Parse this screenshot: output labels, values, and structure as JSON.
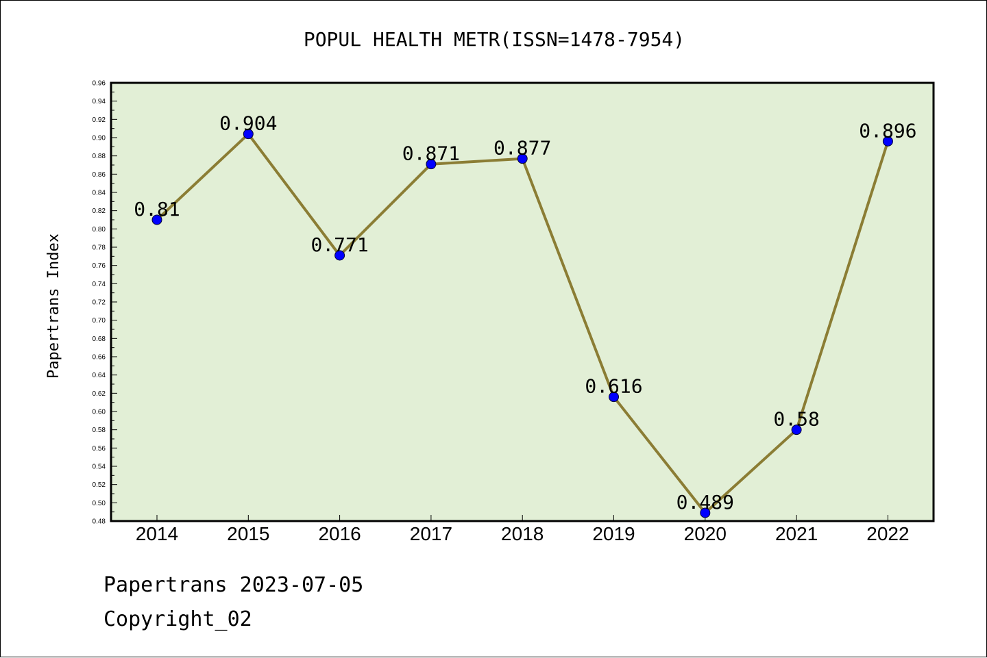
{
  "chart_data": {
    "type": "line",
    "title": "POPUL HEALTH METR(ISSN=1478-7954)",
    "ylabel": "Papertrans Index",
    "xlabel": "",
    "categories": [
      "2014",
      "2015",
      "2016",
      "2017",
      "2018",
      "2019",
      "2020",
      "2021",
      "2022"
    ],
    "values": [
      0.81,
      0.904,
      0.771,
      0.871,
      0.877,
      0.616,
      0.489,
      0.58,
      0.896
    ],
    "data_labels": [
      "0.81",
      "0.904",
      "0.771",
      "0.871",
      "0.877",
      "0.616",
      "0.489",
      "0.58",
      "0.896"
    ],
    "ylim": [
      0.48,
      0.96
    ],
    "ytick_step": 0.02,
    "grid": false,
    "legend": "none",
    "colors": {
      "plot_background": "#e2efd6",
      "line": "#8b7d34",
      "marker": "#0000ff",
      "axis": "#000000"
    }
  },
  "footer": {
    "line1": "Papertrans 2023-07-05",
    "line2": "Copyright_02"
  }
}
